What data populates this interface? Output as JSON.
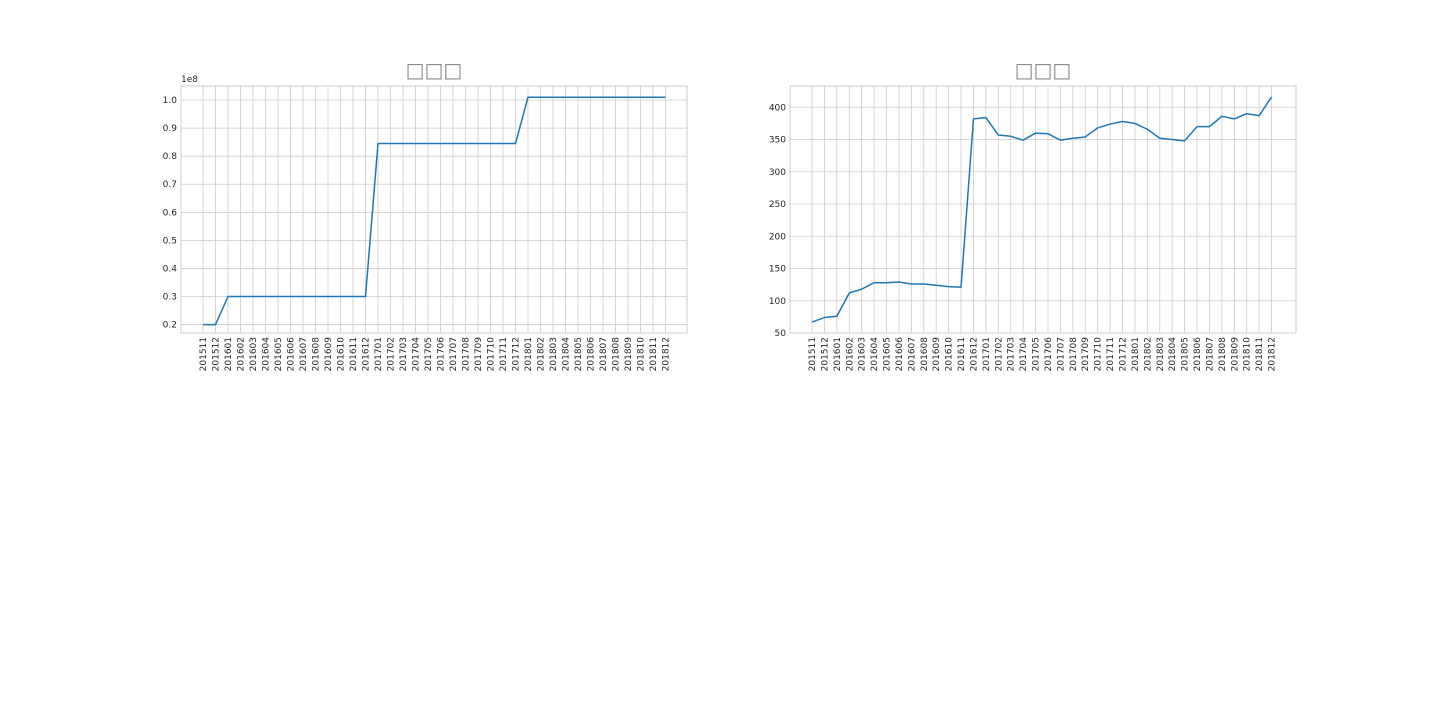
{
  "chart_data": [
    {
      "type": "line",
      "title": "□□□",
      "x": [
        "201511",
        "201512",
        "201601",
        "201602",
        "201603",
        "201604",
        "201605",
        "201606",
        "201607",
        "201608",
        "201609",
        "201610",
        "201611",
        "201612",
        "201701",
        "201702",
        "201703",
        "201704",
        "201705",
        "201706",
        "201707",
        "201708",
        "201709",
        "201710",
        "201711",
        "201712",
        "201801",
        "201802",
        "201803",
        "201804",
        "201805",
        "201806",
        "201807",
        "201808",
        "201809",
        "201810",
        "201811",
        "201812"
      ],
      "values": [
        0.2,
        0.2,
        0.3,
        0.3,
        0.3,
        0.3,
        0.3,
        0.3,
        0.3,
        0.3,
        0.3,
        0.3,
        0.3,
        0.3,
        0.845,
        0.845,
        0.845,
        0.845,
        0.845,
        0.845,
        0.845,
        0.845,
        0.845,
        0.845,
        0.845,
        0.845,
        1.01,
        1.01,
        1.01,
        1.01,
        1.01,
        1.01,
        1.01,
        1.01,
        1.01,
        1.01,
        1.01,
        1.01
      ],
      "y_offset_label": "1e8",
      "yticks": [
        "0.2",
        "0.3",
        "0.4",
        "0.5",
        "0.6",
        "0.7",
        "0.8",
        "0.9",
        "1.0"
      ],
      "ylim": [
        0.17,
        1.05
      ],
      "grid": true,
      "color": "#1f77b4"
    },
    {
      "type": "line",
      "title": "□□□",
      "x": [
        "201511",
        "201512",
        "201601",
        "201602",
        "201603",
        "201604",
        "201605",
        "201606",
        "201607",
        "201608",
        "201609",
        "201610",
        "201611",
        "201612",
        "201701",
        "201702",
        "201703",
        "201704",
        "201705",
        "201706",
        "201707",
        "201708",
        "201709",
        "201710",
        "201711",
        "201712",
        "201801",
        "201802",
        "201803",
        "201804",
        "201805",
        "201806",
        "201807",
        "201808",
        "201809",
        "201810",
        "201811",
        "201812"
      ],
      "values": [
        67,
        74,
        76,
        112,
        118,
        128,
        128,
        129,
        126,
        126,
        124,
        122,
        121,
        382,
        384,
        357,
        355,
        349,
        360,
        359,
        349,
        352,
        354,
        368,
        374,
        378,
        375,
        366,
        352,
        350,
        348,
        370,
        370,
        386,
        382,
        390,
        387,
        416
      ],
      "yticks": [
        "50",
        "100",
        "150",
        "200",
        "250",
        "300",
        "350",
        "400"
      ],
      "ylim": [
        50,
        433
      ],
      "grid": true,
      "color": "#1f77b4"
    }
  ]
}
